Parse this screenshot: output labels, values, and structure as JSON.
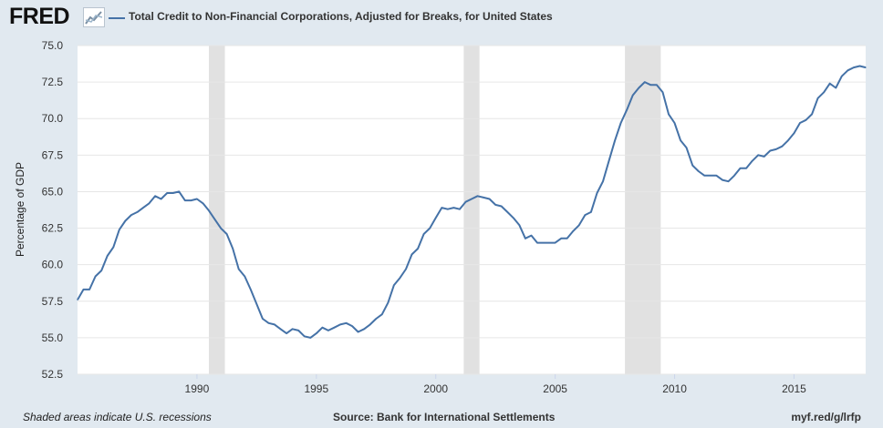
{
  "brand": {
    "logo_text": "FRED",
    "logo_icon": "line-chart-icon"
  },
  "legend": {
    "series_label": "Total Credit to Non-Financial Corporations, Adjusted for Breaks, for United States",
    "color": "#4572a7"
  },
  "footer": {
    "note": "Shaded areas indicate U.S. recessions",
    "source": "Source: Bank for International Settlements",
    "link": "myf.red/g/lrfp"
  },
  "chart_data": {
    "type": "line",
    "ylabel": "Percentage of GDP",
    "xlabel": "",
    "xlim": [
      1985.0,
      2018.0
    ],
    "ylim": [
      52.5,
      75.0
    ],
    "y_ticks": [
      52.5,
      55.0,
      57.5,
      60.0,
      62.5,
      65.0,
      67.5,
      70.0,
      72.5,
      75.0
    ],
    "x_ticks": [
      1990,
      1995,
      2000,
      2005,
      2010,
      2015
    ],
    "grid": "horizontal",
    "colors": {
      "line": "#4572a7",
      "recession": "#e1e1e1",
      "grid": "#e6e6e6",
      "plot_bg": "#ffffff"
    },
    "recessions": [
      [
        1990.5,
        1991.17
      ],
      [
        2001.17,
        2001.83
      ],
      [
        2007.92,
        2009.42
      ]
    ],
    "series": [
      {
        "name": "Total Credit to Non-Financial Corporations, Adjusted for Breaks, for United States",
        "x": [
          1985.0,
          1985.25,
          1985.5,
          1985.75,
          1986.0,
          1986.25,
          1986.5,
          1986.75,
          1987.0,
          1987.25,
          1987.5,
          1987.75,
          1988.0,
          1988.25,
          1988.5,
          1988.75,
          1989.0,
          1989.25,
          1989.5,
          1989.75,
          1990.0,
          1990.25,
          1990.5,
          1990.75,
          1991.0,
          1991.25,
          1991.5,
          1991.75,
          1992.0,
          1992.25,
          1992.5,
          1992.75,
          1993.0,
          1993.25,
          1993.5,
          1993.75,
          1994.0,
          1994.25,
          1994.5,
          1994.75,
          1995.0,
          1995.25,
          1995.5,
          1995.75,
          1996.0,
          1996.25,
          1996.5,
          1996.75,
          1997.0,
          1997.25,
          1997.5,
          1997.75,
          1998.0,
          1998.25,
          1998.5,
          1998.75,
          1999.0,
          1999.25,
          1999.5,
          1999.75,
          2000.0,
          2000.25,
          2000.5,
          2000.75,
          2001.0,
          2001.25,
          2001.5,
          2001.75,
          2002.0,
          2002.25,
          2002.5,
          2002.75,
          2003.0,
          2003.25,
          2003.5,
          2003.75,
          2004.0,
          2004.25,
          2004.5,
          2004.75,
          2005.0,
          2005.25,
          2005.5,
          2005.75,
          2006.0,
          2006.25,
          2006.5,
          2006.75,
          2007.0,
          2007.25,
          2007.5,
          2007.75,
          2008.0,
          2008.25,
          2008.5,
          2008.75,
          2009.0,
          2009.25,
          2009.5,
          2009.75,
          2010.0,
          2010.25,
          2010.5,
          2010.75,
          2011.0,
          2011.25,
          2011.5,
          2011.75,
          2012.0,
          2012.25,
          2012.5,
          2012.75,
          2013.0,
          2013.25,
          2013.5,
          2013.75,
          2014.0,
          2014.25,
          2014.5,
          2014.75,
          2015.0,
          2015.25,
          2015.5,
          2015.75,
          2016.0,
          2016.25,
          2016.5,
          2016.75,
          2017.0,
          2017.25,
          2017.5,
          2017.75,
          2018.0
        ],
        "values": [
          57.6,
          58.3,
          58.3,
          59.2,
          59.6,
          60.6,
          61.2,
          62.4,
          63.0,
          63.4,
          63.6,
          63.9,
          64.2,
          64.7,
          64.5,
          64.9,
          64.9,
          65.0,
          64.4,
          64.4,
          64.5,
          64.2,
          63.7,
          63.1,
          62.5,
          62.1,
          61.1,
          59.7,
          59.2,
          58.3,
          57.3,
          56.3,
          56.0,
          55.9,
          55.6,
          55.3,
          55.6,
          55.5,
          55.1,
          55.0,
          55.3,
          55.7,
          55.5,
          55.7,
          55.9,
          56.0,
          55.8,
          55.4,
          55.6,
          55.9,
          56.3,
          56.6,
          57.4,
          58.6,
          59.1,
          59.7,
          60.7,
          61.1,
          62.1,
          62.5,
          63.2,
          63.9,
          63.8,
          63.9,
          63.8,
          64.3,
          64.5,
          64.7,
          64.6,
          64.5,
          64.1,
          64.0,
          63.6,
          63.2,
          62.7,
          61.8,
          62.0,
          61.5,
          61.5,
          61.5,
          61.5,
          61.8,
          61.8,
          62.3,
          62.7,
          63.4,
          63.6,
          64.9,
          65.7,
          67.1,
          68.5,
          69.7,
          70.6,
          71.6,
          72.1,
          72.5,
          72.3,
          72.3,
          71.8,
          70.3,
          69.7,
          68.5,
          68.0,
          66.8,
          66.4,
          66.1,
          66.1,
          66.1,
          65.8,
          65.7,
          66.1,
          66.6,
          66.6,
          67.1,
          67.5,
          67.4,
          67.8,
          67.9,
          68.1,
          68.5,
          69.0,
          69.7,
          69.9,
          70.3,
          71.4,
          71.8,
          72.4,
          72.1,
          72.9,
          73.3,
          73.5,
          73.6,
          73.5
        ]
      }
    ]
  }
}
